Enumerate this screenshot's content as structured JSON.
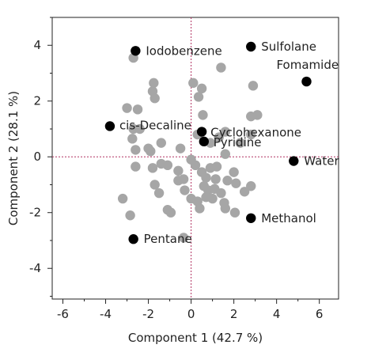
{
  "chart_data": {
    "type": "scatter",
    "title": "",
    "xlabel": "Component 1  (42.7 %)",
    "ylabel": "Component 2  (28.1 %)",
    "xlim": [
      -6.5,
      6.9
    ],
    "ylim": [
      -5.1,
      5.0
    ],
    "x_ticks": [
      -6,
      -4,
      -2,
      0,
      2,
      4,
      6
    ],
    "y_ticks": [
      -4,
      -2,
      0,
      2,
      4
    ],
    "grid": false,
    "reference_lines": {
      "x": 0,
      "y": 0,
      "style": "dotted",
      "color": "#b03060"
    },
    "colors": {
      "highlighted": "#000000",
      "background": "#a6a6a6",
      "frame": "#222222"
    },
    "series": [
      {
        "role": "highlighted",
        "points": [
          {
            "x": -2.6,
            "y": 3.8,
            "label": "Iodobenzene"
          },
          {
            "x": 2.8,
            "y": 3.95,
            "label": "Sulfolane"
          },
          {
            "x": 5.4,
            "y": 2.7,
            "label": "Fomamide"
          },
          {
            "x": -3.8,
            "y": 1.1,
            "label": "cis-Decaline"
          },
          {
            "x": 0.5,
            "y": 0.9,
            "label": "Cyclohexanone"
          },
          {
            "x": 0.6,
            "y": 0.55,
            "label": "Pyridine"
          },
          {
            "x": 4.8,
            "y": -0.15,
            "label": "Water"
          },
          {
            "x": 2.8,
            "y": -2.2,
            "label": "Methanol"
          },
          {
            "x": -2.7,
            "y": -2.95,
            "label": "Pentane"
          }
        ]
      },
      {
        "role": "background",
        "points": [
          {
            "x": -2.7,
            "y": 3.55
          },
          {
            "x": -1.8,
            "y": 2.35
          },
          {
            "x": -1.7,
            "y": 2.1
          },
          {
            "x": -1.75,
            "y": 2.65
          },
          {
            "x": 0.1,
            "y": 2.65
          },
          {
            "x": 0.5,
            "y": 2.45
          },
          {
            "x": 0.35,
            "y": 2.15
          },
          {
            "x": 1.4,
            "y": 3.2
          },
          {
            "x": 2.9,
            "y": 2.55
          },
          {
            "x": -3.0,
            "y": 1.75
          },
          {
            "x": -2.5,
            "y": 1.7
          },
          {
            "x": 2.8,
            "y": 1.45
          },
          {
            "x": 3.1,
            "y": 1.5
          },
          {
            "x": 0.55,
            "y": 1.5
          },
          {
            "x": -2.7,
            "y": 1.0
          },
          {
            "x": -2.4,
            "y": 1.0
          },
          {
            "x": -2.75,
            "y": 0.65
          },
          {
            "x": -2.0,
            "y": 0.3
          },
          {
            "x": -1.4,
            "y": 0.5
          },
          {
            "x": -2.6,
            "y": 0.25
          },
          {
            "x": -1.9,
            "y": 0.2
          },
          {
            "x": 0.3,
            "y": 0.8
          },
          {
            "x": 0.9,
            "y": 0.5
          },
          {
            "x": 1.3,
            "y": 0.7
          },
          {
            "x": 1.6,
            "y": 0.9
          },
          {
            "x": 2.3,
            "y": 0.5
          },
          {
            "x": 2.8,
            "y": 0.8
          },
          {
            "x": -0.5,
            "y": 0.3
          },
          {
            "x": -1.4,
            "y": -0.25
          },
          {
            "x": 0.0,
            "y": -0.1
          },
          {
            "x": 1.6,
            "y": 0.1
          },
          {
            "x": -2.6,
            "y": -0.35
          },
          {
            "x": -1.8,
            "y": -0.4
          },
          {
            "x": -1.1,
            "y": -0.3
          },
          {
            "x": -0.6,
            "y": -0.5
          },
          {
            "x": 0.2,
            "y": -0.3
          },
          {
            "x": 0.5,
            "y": -0.55
          },
          {
            "x": 0.9,
            "y": -0.4
          },
          {
            "x": 1.2,
            "y": -0.35
          },
          {
            "x": 2.0,
            "y": -0.55
          },
          {
            "x": -0.6,
            "y": -0.85
          },
          {
            "x": -0.35,
            "y": -0.8
          },
          {
            "x": 0.7,
            "y": -0.75
          },
          {
            "x": 1.15,
            "y": -0.8
          },
          {
            "x": 1.7,
            "y": -0.85
          },
          {
            "x": 2.1,
            "y": -0.95
          },
          {
            "x": -1.7,
            "y": -1.0
          },
          {
            "x": -0.3,
            "y": -1.2
          },
          {
            "x": 0.6,
            "y": -1.05
          },
          {
            "x": 0.8,
            "y": -1.2
          },
          {
            "x": 1.1,
            "y": -1.15
          },
          {
            "x": 1.4,
            "y": -1.3
          },
          {
            "x": 2.8,
            "y": -1.05
          },
          {
            "x": -1.5,
            "y": -1.3
          },
          {
            "x": 0.0,
            "y": -1.5
          },
          {
            "x": 0.7,
            "y": -1.45
          },
          {
            "x": 1.0,
            "y": -1.5
          },
          {
            "x": 2.5,
            "y": -1.25
          },
          {
            "x": -3.2,
            "y": -1.5
          },
          {
            "x": 0.3,
            "y": -1.6
          },
          {
            "x": 1.55,
            "y": -1.65
          },
          {
            "x": 1.6,
            "y": -1.85
          },
          {
            "x": -1.1,
            "y": -1.9
          },
          {
            "x": -0.95,
            "y": -2.0
          },
          {
            "x": 0.4,
            "y": -1.85
          },
          {
            "x": 2.05,
            "y": -2.0
          },
          {
            "x": -2.85,
            "y": -2.1
          },
          {
            "x": -0.35,
            "y": -2.9
          }
        ]
      }
    ]
  }
}
